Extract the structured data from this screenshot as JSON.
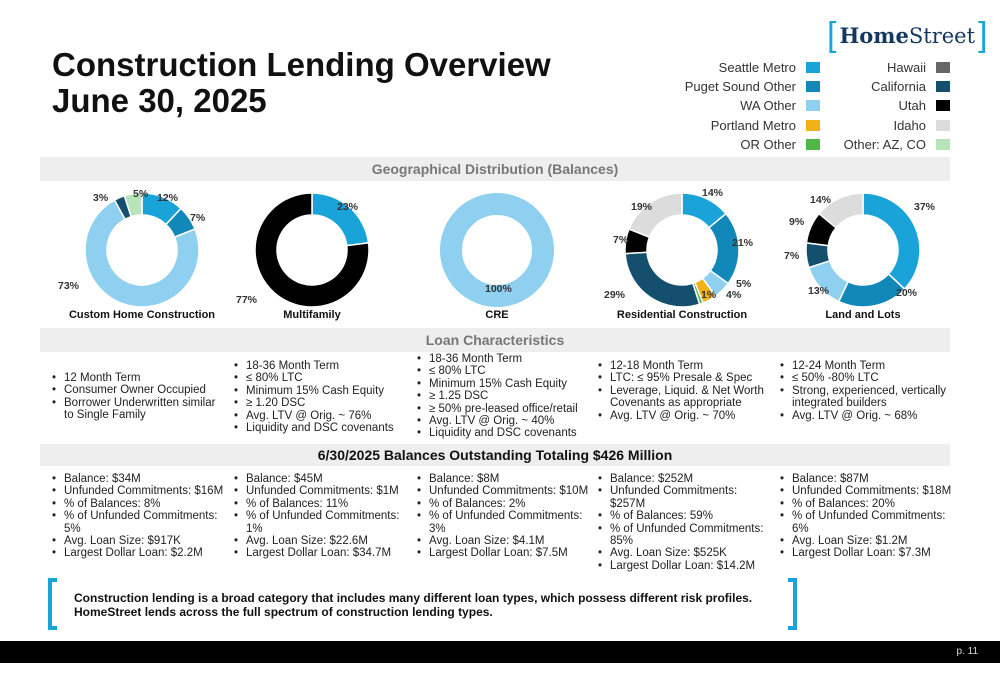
{
  "title_line1": "Construction Lending Overview",
  "title_line2": "June 30, 2025",
  "logo": {
    "left_bracket": "[",
    "word_bold": "Home",
    "word_rest": "Street",
    "right_bracket": "]"
  },
  "legend_left": [
    {
      "label": "Seattle Metro",
      "color": "#1aa3d9"
    },
    {
      "label": "Puget Sound Other",
      "color": "#1288b8"
    },
    {
      "label": "WA Other",
      "color": "#8fd0f1"
    },
    {
      "label": "Portland Metro",
      "color": "#f2b117"
    },
    {
      "label": "OR Other",
      "color": "#4db848"
    }
  ],
  "legend_right": [
    {
      "label": "Hawaii",
      "color": "#666666"
    },
    {
      "label": "California",
      "color": "#14506e"
    },
    {
      "label": "Utah",
      "color": "#000000"
    },
    {
      "label": "Idaho",
      "color": "#dcdcdc"
    },
    {
      "label": "Other: AZ, CO",
      "color": "#b9e4b9"
    }
  ],
  "geo_header": "Geographical Distribution (Balances)",
  "loan_header": "Loan Characteristics",
  "balance_header": "6/30/2025 Balances Outstanding Totaling $426 Million",
  "chart_data": [
    {
      "type": "pie",
      "title": "Custom Home Construction",
      "labels": [
        "Seattle Metro",
        "Puget Sound Other",
        "WA Other",
        "California",
        "Other: AZ, CO"
      ],
      "values": [
        12,
        7,
        73,
        3,
        5
      ],
      "value_labels": [
        "12%",
        "7%",
        "73%",
        "3%",
        "5%"
      ]
    },
    {
      "type": "pie",
      "title": "Multifamily",
      "labels": [
        "Seattle Metro",
        "Utah"
      ],
      "values": [
        23,
        77
      ],
      "value_labels": [
        "23%",
        "77%"
      ]
    },
    {
      "type": "pie",
      "title": "CRE",
      "labels": [
        "WA Other"
      ],
      "values": [
        100
      ],
      "value_labels": [
        "100%"
      ]
    },
    {
      "type": "pie",
      "title": "Residential Construction",
      "labels": [
        "Seattle Metro",
        "Puget Sound Other",
        "WA Other",
        "Portland Metro",
        "OR Other",
        "California",
        "Utah",
        "Idaho"
      ],
      "values": [
        14,
        21,
        5,
        4,
        1,
        29,
        7,
        19
      ],
      "value_labels": [
        "14%",
        "21%",
        "5%",
        "4%",
        "1%",
        "29%",
        "7%",
        "19%"
      ]
    },
    {
      "type": "pie",
      "title": "Land and Lots",
      "labels": [
        "Seattle Metro",
        "Puget Sound Other",
        "WA Other",
        "California",
        "Utah",
        "Idaho"
      ],
      "values": [
        37,
        20,
        13,
        7,
        9,
        14
      ],
      "value_labels": [
        "37%",
        "20%",
        "13%",
        "7%",
        "9%",
        "14%"
      ]
    }
  ],
  "characteristics": [
    [
      "12 Month Term",
      "Consumer Owner Occupied",
      "Borrower Underwritten similar to Single Family"
    ],
    [
      "18-36 Month Term",
      "≤ 80% LTC",
      "Minimum 15% Cash Equity",
      "≥ 1.20 DSC",
      "Avg. LTV @ Orig. ~  76%",
      "Liquidity and DSC covenants"
    ],
    [
      "18-36 Month Term",
      "≤ 80% LTC",
      "Minimum 15% Cash Equity",
      "≥ 1.25 DSC",
      "≥  50% pre-leased office/retail",
      "Avg. LTV @ Orig. ~ 40%",
      "Liquidity and DSC covenants"
    ],
    [
      "12-18 Month Term",
      "LTC:  ≤ 95%  Presale & Spec",
      "Leverage, Liquid. & Net Worth Covenants as appropriate",
      "Avg. LTV @ Orig. ~ 70%"
    ],
    [
      "12-24 Month Term",
      "≤ 50% -80% LTC",
      " Strong, experienced, vertically integrated builders",
      "Avg. LTV @ Orig. ~ 68%"
    ]
  ],
  "balances": [
    [
      "Balance: $34M",
      "Unfunded Commitments: $16M",
      "% of Balances: 8%",
      "% of Unfunded Commitments: 5%",
      "Avg. Loan Size: $917K",
      "Largest Dollar Loan:  $2.2M"
    ],
    [
      "Balance: $45M",
      "Unfunded Commitments: $1M",
      "% of Balances: 11%",
      "% of Unfunded Commitments: 1%",
      "Avg. Loan Size: $22.6M",
      "Largest Dollar Loan: $34.7M"
    ],
    [
      "Balance: $8M",
      "Unfunded Commitments: $10M",
      "% of Balances: 2%",
      "% of Unfunded Commitments: 3%",
      "Avg. Loan Size: $4.1M",
      "Largest Dollar Loan: $7.5M"
    ],
    [
      "Balance: $252M",
      "Unfunded Commitments: $257M",
      "% of Balances: 59%",
      "% of Unfunded Commitments: 85%",
      "Avg. Loan Size: $525K",
      "Largest Dollar Loan: $14.2M"
    ],
    [
      "Balance: $87M",
      "Unfunded Commitments: $18M",
      "% of Balances: 20%",
      "% of Unfunded Commitments: 6%",
      "Avg. Loan Size: $1.2M",
      "Largest Dollar Loan: $7.3M"
    ]
  ],
  "footnote": "Construction lending is a broad category that includes many different loan types, which possess different risk profiles. HomeStreet lends across the full spectrum of construction lending types.",
  "page_number": "p. 11"
}
